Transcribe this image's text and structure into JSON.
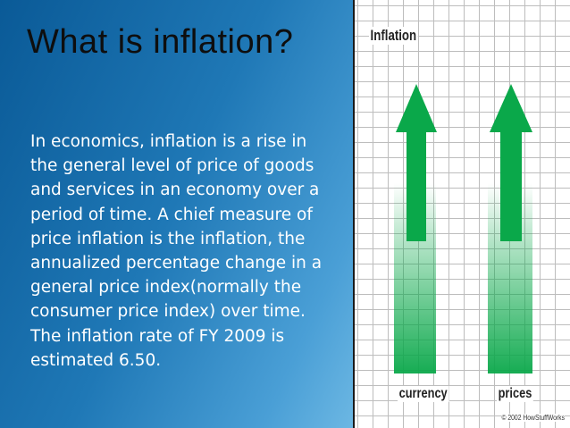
{
  "slide": {
    "title": "What is inflation?",
    "body": "In economics, inflation is a rise in\nthe general level of price of goods\nand services in an economy over a\nperiod of time. A chief measure of\nprice inflation is the inflation, the\nannualized percentage change in a\ngeneral price index(normally the\nconsumer price index) over time.\nThe  inflation rate of FY 2009 is\nestimated 6.50."
  },
  "figure": {
    "title": "Inflation",
    "labels": [
      "currency",
      "prices"
    ],
    "credit": "© 2002 HowStuffWorks",
    "arrow_color": "#0aa84a",
    "icons": [
      "up-arrow-icon",
      "up-arrow-icon"
    ]
  }
}
